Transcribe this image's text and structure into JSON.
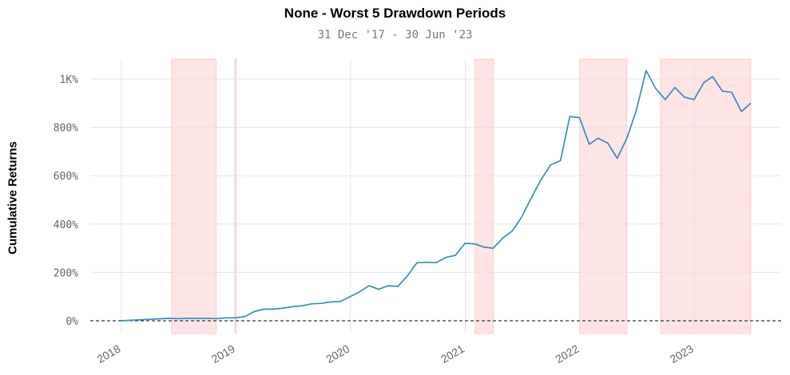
{
  "chart_data": {
    "type": "line",
    "title": "None - Worst 5 Drawdown Periods",
    "subtitle": "31 Dec '17 - 30 Jun '23",
    "ylabel": "Cumulative Returns",
    "xlabel": "",
    "x_range": [
      "2017-12-31",
      "2023-06-30"
    ],
    "ylim": [
      -80,
      1080
    ],
    "y_ticks": [
      {
        "value": 0,
        "label": "0%"
      },
      {
        "value": 200,
        "label": "200%"
      },
      {
        "value": 400,
        "label": "400%"
      },
      {
        "value": 600,
        "label": "600%"
      },
      {
        "value": 800,
        "label": "800%"
      },
      {
        "value": 1000,
        "label": "1K%"
      }
    ],
    "x_ticks": [
      {
        "date": "2018-01-01",
        "label": "2018"
      },
      {
        "date": "2019-01-01",
        "label": "2019"
      },
      {
        "date": "2020-01-01",
        "label": "2020"
      },
      {
        "date": "2021-01-01",
        "label": "2021"
      },
      {
        "date": "2022-01-01",
        "label": "2022"
      },
      {
        "date": "2023-01-01",
        "label": "2023"
      }
    ],
    "grid": true,
    "baseline": 0,
    "series": [
      {
        "color": "#348dc1",
        "x": [
          "2018-01-01",
          "2018-01-31",
          "2018-02-28",
          "2018-03-31",
          "2018-04-30",
          "2018-05-31",
          "2018-06-30",
          "2018-07-31",
          "2018-08-31",
          "2018-09-30",
          "2018-10-31",
          "2018-11-30",
          "2018-12-31",
          "2019-01-31",
          "2019-02-28",
          "2019-03-31",
          "2019-04-30",
          "2019-05-31",
          "2019-06-30",
          "2019-07-31",
          "2019-08-31",
          "2019-09-30",
          "2019-10-31",
          "2019-11-30",
          "2019-12-31",
          "2020-01-31",
          "2020-02-29",
          "2020-03-31",
          "2020-04-30",
          "2020-05-31",
          "2020-06-30",
          "2020-07-31",
          "2020-08-31",
          "2020-09-30",
          "2020-10-31",
          "2020-11-30",
          "2020-12-31",
          "2021-01-31",
          "2021-02-28",
          "2021-03-31",
          "2021-04-30",
          "2021-05-31",
          "2021-06-30",
          "2021-07-31",
          "2021-08-31",
          "2021-09-30",
          "2021-10-31",
          "2021-11-30",
          "2021-12-31",
          "2022-01-31",
          "2022-02-28",
          "2022-03-31",
          "2022-04-30",
          "2022-05-31",
          "2022-06-30",
          "2022-07-31",
          "2022-08-31",
          "2022-09-30",
          "2022-10-31",
          "2022-11-30",
          "2022-12-31",
          "2023-01-31",
          "2023-02-28",
          "2023-03-31",
          "2023-04-30",
          "2023-05-31",
          "2023-06-30"
        ],
        "values": [
          0,
          2,
          4,
          6,
          8,
          10,
          9,
          10,
          10,
          10,
          9,
          12,
          12,
          18,
          38,
          48,
          48,
          52,
          58,
          62,
          70,
          72,
          78,
          80,
          100,
          120,
          145,
          130,
          145,
          142,
          185,
          240,
          242,
          240,
          262,
          270,
          320,
          318,
          305,
          300,
          342,
          372,
          430,
          510,
          585,
          645,
          662,
          845,
          840,
          730,
          755,
          735,
          672,
          755,
          870,
          1035,
          960,
          915,
          965,
          925,
          915,
          985,
          1010,
          950,
          945,
          865,
          900
        ]
      }
    ],
    "drawdown_periods": [
      {
        "start": "2018-06-10",
        "end": "2018-10-30"
      },
      {
        "start": "2018-12-28",
        "end": "2019-01-02"
      },
      {
        "start": "2021-02-01",
        "end": "2021-03-31"
      },
      {
        "start": "2021-12-31",
        "end": "2022-05-31"
      },
      {
        "start": "2022-09-15",
        "end": "2023-06-30"
      }
    ],
    "shade_color": "#ffb3b8",
    "zero_line_color": "#000000"
  }
}
